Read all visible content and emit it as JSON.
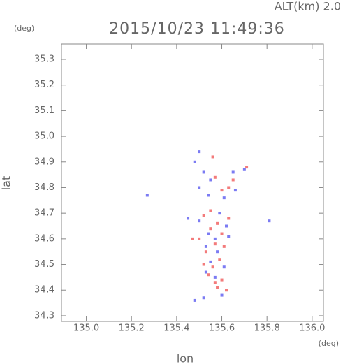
{
  "chart_data": {
    "type": "scatter",
    "title": "2015/10/23 11:49:36",
    "annotation": "ALT(km) 2.0",
    "y_unit": "(deg)",
    "x_unit": "(deg)",
    "xlabel": "lon",
    "ylabel": "lat",
    "xlim": [
      134.89,
      136.05
    ],
    "ylim": [
      34.278,
      35.36
    ],
    "xticks": [
      {
        "value": 135,
        "label": "135.0"
      },
      135.2,
      135.4,
      135.6,
      135.8,
      {
        "value": 136,
        "label": "136.0"
      }
    ],
    "yticks": [
      34.3,
      34.4,
      34.5,
      34.6,
      34.7,
      34.8,
      34.9,
      {
        "value": 35,
        "label": "35.0"
      },
      35.1,
      35.2,
      35.3
    ],
    "series": [
      {
        "color": "#f05a5a",
        "x": [
          135.52,
          135.55,
          135.58,
          135.6,
          135.57,
          135.53,
          135.59,
          135.56,
          135.54,
          135.6,
          135.58,
          135.62,
          135.5,
          135.61,
          135.55,
          135.63,
          135.6,
          135.65,
          135.57,
          135.71,
          135.56,
          135.47,
          135.63,
          135.52,
          135.57
        ],
        "y": [
          34.69,
          34.64,
          34.66,
          34.62,
          34.58,
          34.55,
          34.52,
          34.49,
          34.46,
          34.44,
          34.41,
          34.4,
          34.6,
          34.57,
          34.71,
          34.8,
          34.79,
          34.83,
          34.84,
          34.88,
          34.92,
          34.6,
          34.68,
          34.5,
          34.43
        ]
      },
      {
        "color": "#5a5af0",
        "x": [
          135.5,
          135.54,
          135.57,
          135.62,
          135.53,
          135.58,
          135.55,
          135.61,
          135.53,
          135.57,
          135.6,
          135.48,
          135.52,
          135.45,
          135.5,
          135.48,
          135.52,
          135.55,
          135.54,
          135.61,
          135.65,
          135.66,
          135.7,
          135.81,
          135.27,
          135.59,
          135.63,
          135.5
        ],
        "y": [
          34.67,
          34.62,
          34.6,
          34.65,
          34.57,
          34.55,
          34.51,
          34.49,
          34.47,
          34.45,
          34.38,
          34.36,
          34.37,
          34.68,
          34.94,
          34.9,
          34.86,
          34.83,
          34.77,
          34.76,
          34.86,
          34.79,
          34.87,
          34.67,
          34.77,
          34.7,
          34.61,
          34.8
        ]
      }
    ]
  }
}
